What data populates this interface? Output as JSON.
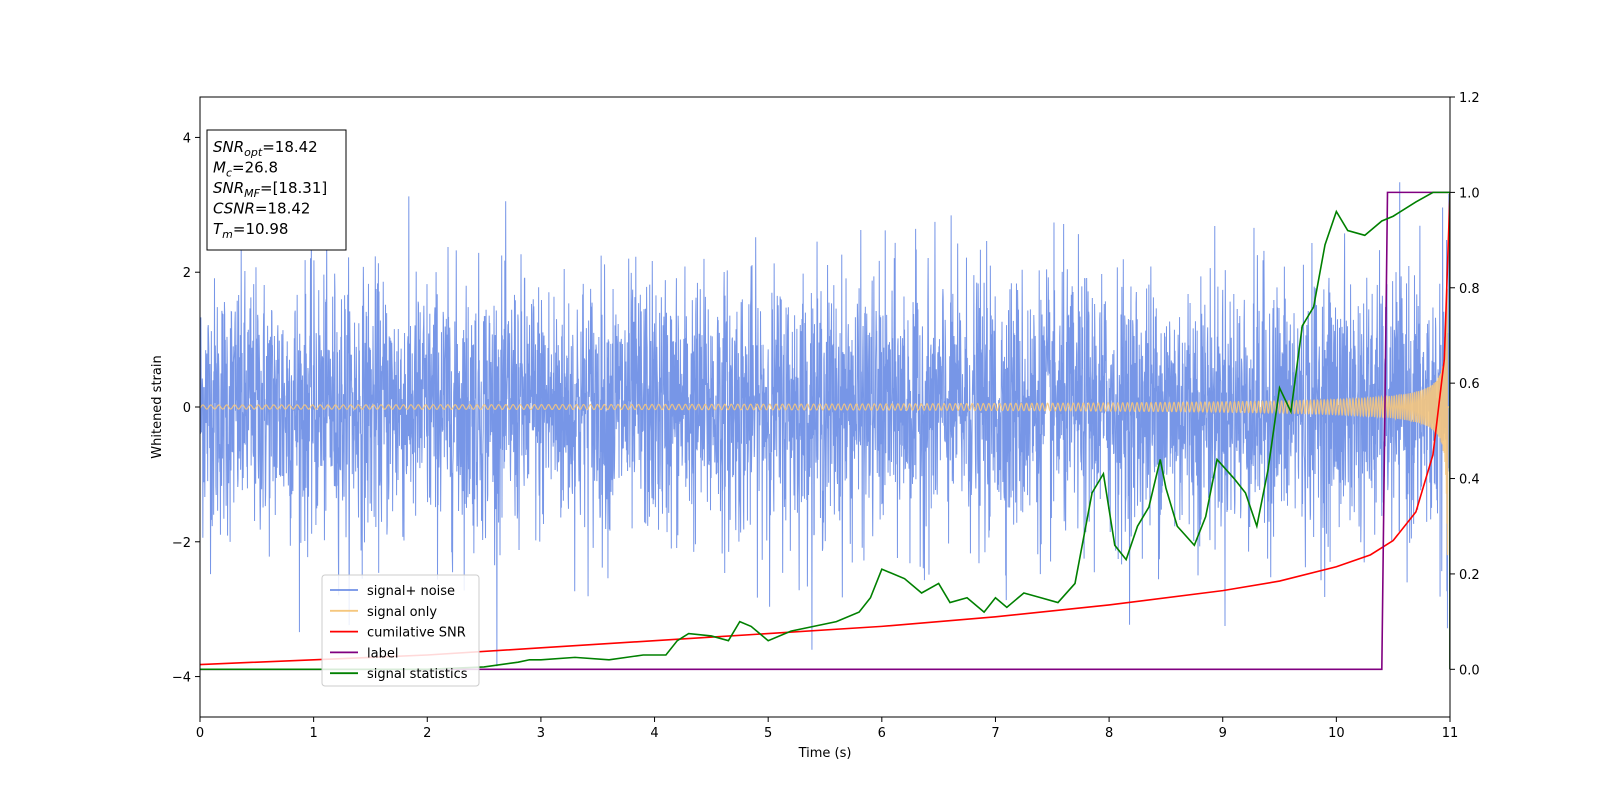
{
  "chart_data": {
    "type": "line",
    "title": "",
    "xlabel": "Time (s)",
    "ylabel_left": "Whitened strain",
    "ylabel_right": "",
    "xlim": [
      0,
      11
    ],
    "ylim_left": [
      -4.6,
      4.6
    ],
    "ylim_right": [
      -0.1,
      1.2
    ],
    "xticks": [
      "0",
      "1",
      "2",
      "3",
      "4",
      "5",
      "6",
      "7",
      "8",
      "9",
      "10",
      "11"
    ],
    "yticks_left": [
      "−4",
      "−2",
      "0",
      "2",
      "4"
    ],
    "yticks_right": [
      "0.0",
      "0.2",
      "0.4",
      "0.6",
      "0.8",
      "1.0",
      "1.2"
    ],
    "grid": false,
    "legend_position": "lower-left",
    "legend": [
      {
        "label": "signal+ noise",
        "color": "#7090e6"
      },
      {
        "label": "signal only",
        "color": "#f5c77e"
      },
      {
        "label": "cumilative SNR",
        "color": "#ff0000"
      },
      {
        "label": "label",
        "color": "#800080"
      },
      {
        "label": "signal statistics",
        "color": "#008000"
      }
    ],
    "info_box": [
      {
        "main": "SNR",
        "sub": "opt",
        "rest": "=18.42"
      },
      {
        "main": "M",
        "sub": "c",
        "rest": "=26.8"
      },
      {
        "main": "SNR",
        "sub": "MF",
        "rest": "=[18.31]"
      },
      {
        "main": "CSNR",
        "sub": "",
        "rest": "=18.42"
      },
      {
        "main": "T",
        "sub": "m",
        "rest": "=10.98"
      }
    ],
    "series": [
      {
        "name": "signal+ noise",
        "axis": "left",
        "color": "#7090e6",
        "description_range": [
          -4.1,
          4.1
        ],
        "typical_envelope": [
          -2.2,
          2.2
        ]
      },
      {
        "name": "signal only",
        "axis": "left",
        "color": "#f5c77e",
        "chirp_start_amplitude": 0.03,
        "chirp_end_amplitude": 2.2,
        "merger_time": 10.98
      },
      {
        "name": "cumilative SNR",
        "axis": "right",
        "color": "#ff0000",
        "x": [
          0,
          1,
          2,
          3,
          4,
          5,
          6,
          7,
          8,
          9,
          9.5,
          10,
          10.3,
          10.5,
          10.7,
          10.85,
          10.95,
          11.0
        ],
        "y": [
          0.01,
          0.02,
          0.03,
          0.045,
          0.06,
          0.075,
          0.09,
          0.11,
          0.135,
          0.165,
          0.185,
          0.215,
          0.24,
          0.27,
          0.33,
          0.45,
          0.65,
          1.0
        ]
      },
      {
        "name": "label",
        "axis": "right",
        "color": "#800080",
        "x": [
          0,
          10.4,
          10.45,
          11.0,
          11.0
        ],
        "y": [
          0.0,
          0.0,
          1.0,
          1.0,
          0.0
        ]
      },
      {
        "name": "signal statistics",
        "axis": "right",
        "color": "#008000",
        "x": [
          0,
          1,
          2,
          2.5,
          2.8,
          2.9,
          3.0,
          3.3,
          3.6,
          3.9,
          4.1,
          4.2,
          4.3,
          4.5,
          4.65,
          4.75,
          4.85,
          5.0,
          5.2,
          5.4,
          5.6,
          5.8,
          5.9,
          6.0,
          6.2,
          6.35,
          6.5,
          6.6,
          6.75,
          6.9,
          7.0,
          7.1,
          7.25,
          7.4,
          7.55,
          7.7,
          7.85,
          7.95,
          8.05,
          8.15,
          8.25,
          8.35,
          8.45,
          8.5,
          8.6,
          8.75,
          8.85,
          8.95,
          9.1,
          9.2,
          9.3,
          9.4,
          9.5,
          9.6,
          9.7,
          9.8,
          9.9,
          10.0,
          10.1,
          10.25,
          10.4,
          10.5,
          10.7,
          10.85,
          11.0,
          11.0
        ],
        "y": [
          0.0,
          0.0,
          0.0,
          0.005,
          0.015,
          0.02,
          0.02,
          0.025,
          0.02,
          0.03,
          0.03,
          0.06,
          0.075,
          0.07,
          0.06,
          0.1,
          0.09,
          0.06,
          0.08,
          0.09,
          0.1,
          0.12,
          0.15,
          0.21,
          0.19,
          0.16,
          0.18,
          0.14,
          0.15,
          0.12,
          0.15,
          0.13,
          0.16,
          0.15,
          0.14,
          0.18,
          0.37,
          0.41,
          0.26,
          0.23,
          0.3,
          0.34,
          0.44,
          0.38,
          0.3,
          0.26,
          0.32,
          0.44,
          0.4,
          0.37,
          0.3,
          0.42,
          0.59,
          0.54,
          0.72,
          0.76,
          0.89,
          0.96,
          0.92,
          0.91,
          0.94,
          0.95,
          0.98,
          1.0,
          1.0,
          0.0
        ]
      }
    ]
  }
}
